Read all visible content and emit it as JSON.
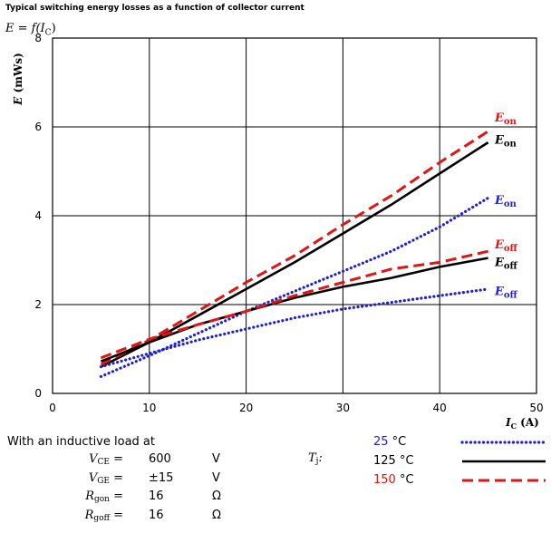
{
  "title": "Typical switching energy losses as a function of collector current",
  "function_label": {
    "prefix": "E = f(",
    "var": "I",
    "sub": "C",
    "suffix": ")"
  },
  "chart_data": {
    "type": "line",
    "xlabel": "I",
    "xlabel_sub": "C",
    "xlabel_unit": "(A)",
    "ylabel": "E",
    "ylabel_unit": "(mWs)",
    "xlim": [
      0,
      50
    ],
    "ylim": [
      0,
      8
    ],
    "xticks": [
      0,
      10,
      20,
      30,
      40,
      50
    ],
    "yticks": [
      0,
      2,
      4,
      6,
      8
    ],
    "grid": true,
    "series": [
      {
        "name": "Eon",
        "temp": 25,
        "color": "#1f1fd6",
        "style": "dotted",
        "x": [
          5,
          10,
          15,
          20,
          25,
          30,
          35,
          40,
          45
        ],
        "y": [
          0.38,
          0.85,
          1.35,
          1.85,
          2.3,
          2.75,
          3.2,
          3.75,
          4.4
        ]
      },
      {
        "name": "Eon",
        "temp": 125,
        "color": "#000000",
        "style": "solid",
        "x": [
          5,
          10,
          15,
          20,
          25,
          30,
          35,
          40,
          45
        ],
        "y": [
          0.6,
          1.15,
          1.75,
          2.35,
          2.95,
          3.6,
          4.25,
          4.95,
          5.65
        ]
      },
      {
        "name": "Eon",
        "temp": 150,
        "color": "#e01515",
        "style": "dashed",
        "x": [
          5,
          10,
          15,
          20,
          25,
          30,
          35,
          40,
          45
        ],
        "y": [
          0.65,
          1.2,
          1.85,
          2.5,
          3.1,
          3.8,
          4.45,
          5.2,
          5.9
        ]
      },
      {
        "name": "Eoff",
        "temp": 25,
        "color": "#1f1fd6",
        "style": "dotted",
        "x": [
          5,
          10,
          15,
          20,
          25,
          30,
          35,
          40,
          45
        ],
        "y": [
          0.6,
          0.9,
          1.2,
          1.45,
          1.7,
          1.9,
          2.05,
          2.2,
          2.35
        ]
      },
      {
        "name": "Eoff",
        "temp": 125,
        "color": "#000000",
        "style": "solid",
        "x": [
          5,
          10,
          15,
          20,
          25,
          30,
          35,
          40,
          45
        ],
        "y": [
          0.72,
          1.15,
          1.55,
          1.85,
          2.15,
          2.4,
          2.6,
          2.85,
          3.05
        ]
      },
      {
        "name": "Eoff",
        "temp": 150,
        "color": "#e01515",
        "style": "dashed",
        "x": [
          5,
          10,
          15,
          20,
          25,
          30,
          35,
          40,
          45
        ],
        "y": [
          0.8,
          1.22,
          1.55,
          1.85,
          2.2,
          2.5,
          2.8,
          2.95,
          3.2
        ]
      }
    ],
    "annotations": [
      {
        "text": "E",
        "sub": "on",
        "color": "#e01515",
        "at_x": 45.5,
        "at_y": 6.2
      },
      {
        "text": "E",
        "sub": "on",
        "color": "#000000",
        "at_x": 45.5,
        "at_y": 5.7
      },
      {
        "text": "E",
        "sub": "on",
        "color": "#1f1fd6",
        "at_x": 45.5,
        "at_y": 4.35
      },
      {
        "text": "E",
        "sub": "off",
        "color": "#e01515",
        "at_x": 45.5,
        "at_y": 3.35
      },
      {
        "text": "E",
        "sub": "off",
        "color": "#000000",
        "at_x": 45.5,
        "at_y": 2.95
      },
      {
        "text": "E",
        "sub": "off",
        "color": "#1f1fd6",
        "at_x": 45.5,
        "at_y": 2.3
      }
    ]
  },
  "conditions": {
    "heading": "With an inductive load at",
    "rows": [
      {
        "sym": "V",
        "sub": "CE",
        "eq": "=",
        "value": "600",
        "unit": "V"
      },
      {
        "sym": "V",
        "sub": "GE",
        "eq": "=",
        "value": "±15",
        "unit": "V"
      },
      {
        "sym": "R",
        "sub": "gon",
        "eq": "=",
        "value": "16",
        "unit": "Ω"
      },
      {
        "sym": "R",
        "sub": "goff",
        "eq": "=",
        "value": "16",
        "unit": "Ω"
      }
    ],
    "tj": {
      "sym": "T",
      "sub": "j",
      "suffix": ":"
    },
    "temps": [
      {
        "value": "25",
        "unit": "°C",
        "value_color": "#1f1fd6",
        "line_color": "#1f1fd6",
        "style": "dotted"
      },
      {
        "value": "125",
        "unit": "°C",
        "value_color": "#000000",
        "line_color": "#000000",
        "style": "solid"
      },
      {
        "value": "150",
        "unit": "°C",
        "value_color": "#e01515",
        "line_color": "#e01515",
        "style": "dashed"
      }
    ]
  }
}
